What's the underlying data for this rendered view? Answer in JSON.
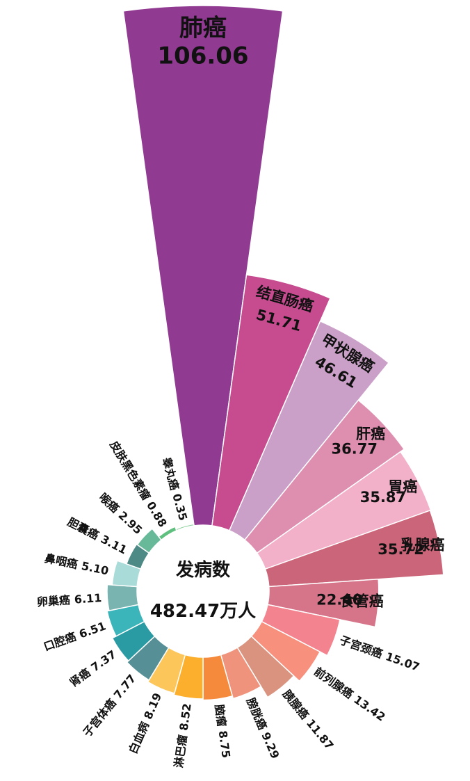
{
  "chart_data": {
    "type": "rose",
    "center_title": "发病数",
    "center_value": "482.47万人",
    "categories": [
      "肺癌",
      "结直肠癌",
      "甲状腺癌",
      "肝癌",
      "胃癌",
      "乳腺癌",
      "食管癌",
      "子宫颈癌",
      "前列腺癌",
      "胰腺癌",
      "膀胱癌",
      "脑瘤",
      "淋巴瘤",
      "白血病",
      "子宫体癌",
      "肾癌",
      "口腔癌",
      "卵巢癌",
      "鼻咽癌",
      "胆囊癌",
      "喉癌",
      "皮肤黑色素瘤",
      "睾丸癌"
    ],
    "values": [
      106.06,
      51.71,
      46.61,
      36.77,
      35.87,
      35.72,
      22.4,
      15.07,
      13.42,
      11.87,
      9.29,
      8.75,
      8.52,
      8.19,
      7.77,
      7.37,
      6.51,
      6.11,
      5.1,
      3.11,
      2.95,
      0.88,
      0.35
    ],
    "value_labels": [
      "106.06",
      "51.71",
      "46.61",
      "36.77",
      "35.87",
      "35.72",
      "22.40",
      "15.07",
      "13.42",
      "11.87",
      "9.29",
      "8.75",
      "8.52",
      "8.19",
      "7.77",
      "7.37",
      "6.51",
      "6.11",
      "5.10",
      "3.11",
      "2.95",
      "0.88",
      "0.35"
    ],
    "colors": [
      "#913a92",
      "#c64b8f",
      "#cba0c8",
      "#de8fb0",
      "#f2b0c9",
      "#cb6579",
      "#d6758a",
      "#f3838f",
      "#f8907e",
      "#d9937f",
      "#ef937c",
      "#f68a3c",
      "#fbaf2c",
      "#fdc65a",
      "#568f96",
      "#2a9aa3",
      "#3bb5b9",
      "#7ab4b0",
      "#a9dbd8",
      "#4d8a86",
      "#67b99a",
      "#5fbf7e",
      "#8fd1a0"
    ]
  }
}
